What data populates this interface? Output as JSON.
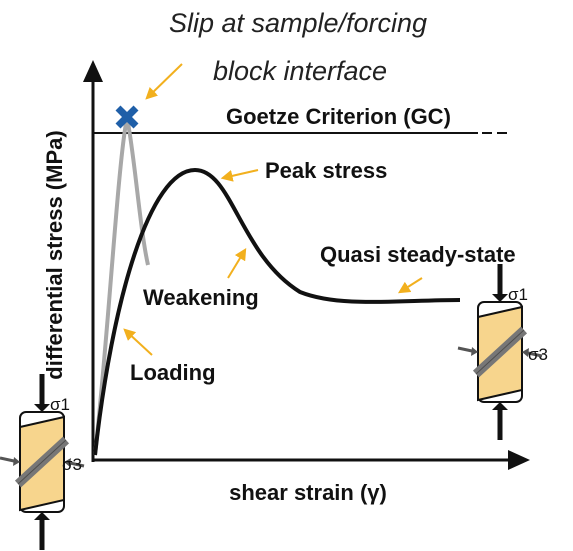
{
  "annotations": {
    "slip": [
      "Slip at sample/forcing",
      "block interface"
    ],
    "goetze": "Goetze Criterion (GC)",
    "peak": "Peak stress",
    "steady": "Quasi steady-state",
    "weakening": "Weakening",
    "loading": "Loading"
  },
  "axes": {
    "y_label": "differential stress (MPa)",
    "x_label": "shear strain (γ)"
  },
  "samples": [
    {
      "sigma1": "σ1",
      "sigma3": "σ3"
    },
    {
      "sigma1": "σ1",
      "sigma3": "σ3"
    }
  ]
}
